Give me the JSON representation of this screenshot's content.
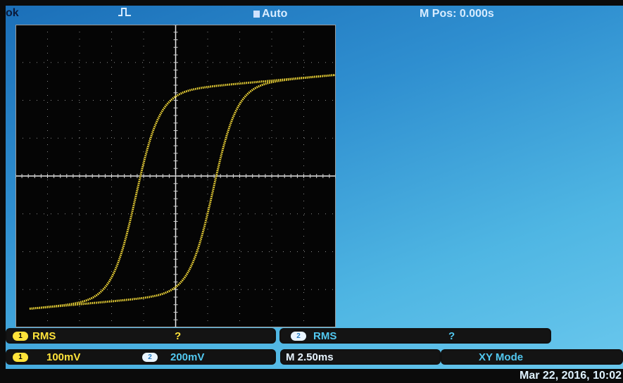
{
  "header": {
    "left_mark": "ok",
    "trigger_icon": "rising-edge-trigger-icon",
    "trigger_mode": "Auto",
    "mpos": "M Pos: 0.000s"
  },
  "measure": {
    "ch1": {
      "badge": "1",
      "label": "RMS",
      "value": "?"
    },
    "ch2": {
      "badge": "2",
      "label": "RMS",
      "value": "?"
    }
  },
  "status": {
    "ch1": {
      "badge": "1",
      "scale": "100mV"
    },
    "ch2": {
      "badge": "2",
      "scale": "200mV"
    },
    "timebase": "M 2.50ms",
    "mode": "XY Mode"
  },
  "datetime": "Mar 22, 2016, 10:02",
  "colors": {
    "trace": "#ffe33a",
    "ch2": "#52c8f0",
    "background": "#2f8fd0"
  }
}
